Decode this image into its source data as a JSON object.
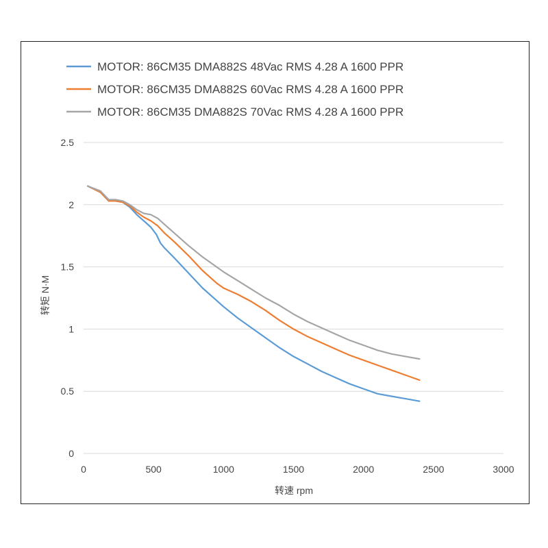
{
  "chart_data": {
    "type": "line",
    "xlabel": "转速 rpm",
    "ylabel": "转矩 N·M",
    "xlim": [
      0,
      3000
    ],
    "ylim": [
      0,
      2.5
    ],
    "xticks": [
      "0",
      "500",
      "1000",
      "1500",
      "2000",
      "2500",
      "3000"
    ],
    "yticks": [
      "0",
      "0.5",
      "1",
      "1.5",
      "2",
      "2.5"
    ],
    "grid": "horizontal",
    "legend": "top",
    "series": [
      {
        "name": "MOTOR: 86CM35 DMA882S 48Vac  RMS  4.28 A  1600 PPR",
        "color": "#5b9bd5",
        "x": [
          30,
          120,
          180,
          230,
          280,
          330,
          380,
          430,
          480,
          520,
          550,
          580,
          650,
          750,
          850,
          950,
          1000,
          1100,
          1200,
          1300,
          1400,
          1500,
          1600,
          1700,
          1800,
          1900,
          2000,
          2100,
          2200,
          2300,
          2400
        ],
        "y": [
          2.15,
          2.1,
          2.03,
          2.03,
          2.02,
          1.98,
          1.92,
          1.87,
          1.82,
          1.76,
          1.69,
          1.65,
          1.57,
          1.45,
          1.33,
          1.23,
          1.18,
          1.09,
          1.01,
          0.93,
          0.85,
          0.78,
          0.72,
          0.66,
          0.61,
          0.56,
          0.52,
          0.48,
          0.46,
          0.44,
          0.42
        ]
      },
      {
        "name": "MOTOR: 86CM35 DMA882S 60Vac  RMS  4.28 A  1600 PPR",
        "color": "#ed7d31",
        "x": [
          30,
          120,
          180,
          230,
          280,
          330,
          380,
          430,
          480,
          530,
          580,
          650,
          750,
          850,
          950,
          1000,
          1100,
          1200,
          1300,
          1400,
          1500,
          1600,
          1700,
          1800,
          1900,
          2000,
          2100,
          2200,
          2300,
          2400
        ],
        "y": [
          2.15,
          2.1,
          2.03,
          2.03,
          2.02,
          1.99,
          1.94,
          1.9,
          1.87,
          1.83,
          1.77,
          1.7,
          1.59,
          1.47,
          1.37,
          1.33,
          1.28,
          1.22,
          1.15,
          1.07,
          1.0,
          0.94,
          0.89,
          0.84,
          0.79,
          0.75,
          0.71,
          0.67,
          0.63,
          0.59
        ]
      },
      {
        "name": "MOTOR: 86CM35 DMA882S 70Vac  RMS  4.28 A  1600 PPR",
        "color": "#a5a5a5",
        "x": [
          30,
          120,
          180,
          230,
          280,
          330,
          380,
          430,
          480,
          530,
          580,
          650,
          750,
          850,
          950,
          1000,
          1100,
          1200,
          1300,
          1400,
          1500,
          1600,
          1700,
          1800,
          1900,
          2000,
          2100,
          2200,
          2300,
          2400
        ],
        "y": [
          2.15,
          2.11,
          2.04,
          2.04,
          2.03,
          2.0,
          1.96,
          1.93,
          1.92,
          1.89,
          1.84,
          1.77,
          1.67,
          1.58,
          1.5,
          1.46,
          1.39,
          1.32,
          1.25,
          1.19,
          1.12,
          1.06,
          1.01,
          0.96,
          0.91,
          0.87,
          0.83,
          0.8,
          0.78,
          0.76
        ]
      }
    ]
  }
}
